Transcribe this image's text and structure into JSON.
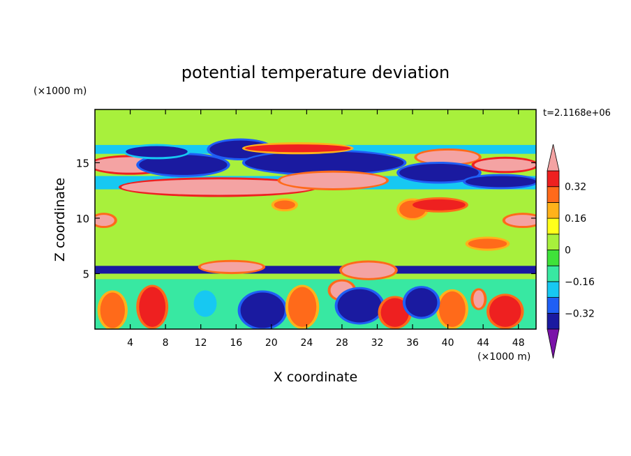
{
  "chart_data": {
    "type": "heatmap",
    "title": "potential temperature deviation",
    "xlabel": "X coordinate",
    "ylabel": "Z coordinate",
    "x_units": "(×1000 m)",
    "y_units": "(×1000 m)",
    "time_label": "t=2.1168e+06",
    "xlim": [
      0,
      50
    ],
    "ylim": [
      0,
      19.8
    ],
    "x_ticks": [
      4,
      8,
      12,
      16,
      20,
      24,
      28,
      32,
      36,
      40,
      44,
      48
    ],
    "y_ticks": [
      5,
      10,
      15
    ],
    "colorbar": {
      "levels": [
        -0.4,
        -0.32,
        -0.24,
        -0.16,
        -0.08,
        0,
        0.08,
        0.16,
        0.24,
        0.32,
        0.4
      ],
      "tick_labels": [
        "0.32",
        "0.16",
        "0",
        "−0.16",
        "−0.32"
      ],
      "tick_values": [
        0.32,
        0.16,
        0,
        -0.16,
        -0.32
      ],
      "colors": [
        "#7a12a8",
        "#1a1aa0",
        "#1f5ff5",
        "#17c8f2",
        "#38e8a2",
        "#3fe23a",
        "#a8f03c",
        "#ffff1a",
        "#ffb21a",
        "#ff6a1a",
        "#ee2020",
        "#f4a3a3"
      ]
    },
    "features": [
      {
        "x": [
          0,
          50
        ],
        "y": [
          0,
          19.8
        ],
        "level": 0.03,
        "desc": "background"
      },
      {
        "x": [
          0,
          50
        ],
        "y": [
          16.8,
          19.8
        ],
        "level": 0.05
      },
      {
        "x": [
          0,
          50
        ],
        "y": [
          11.5,
          13.6
        ],
        "level": 0.01
      },
      {
        "x": [
          0,
          50
        ],
        "y": [
          8.5,
          11.0
        ],
        "level": 0.04
      },
      {
        "x": [
          0,
          50
        ],
        "y": [
          6.0,
          8.2
        ],
        "level": 0.03
      },
      {
        "x": [
          0,
          50
        ],
        "y": [
          5.0,
          5.7
        ],
        "level": -0.33
      },
      {
        "x": [
          0,
          50
        ],
        "y": [
          0,
          4.5
        ],
        "level": -0.1
      },
      {
        "x": [
          0,
          50
        ],
        "y": [
          15.8,
          16.6
        ],
        "level": -0.2
      },
      {
        "x": [
          0,
          50
        ],
        "y": [
          12.6,
          13.8
        ],
        "level": -0.24
      }
    ],
    "blobs": [
      {
        "cx": 4,
        "cy": 14.8,
        "rx": 4.5,
        "ry": 0.7,
        "level": 0.45
      },
      {
        "cx": 14,
        "cy": 12.8,
        "rx": 11,
        "ry": 0.7,
        "level": 0.45
      },
      {
        "cx": 16.5,
        "cy": 16.2,
        "rx": 3.5,
        "ry": 0.8,
        "level": -0.35
      },
      {
        "cx": 10,
        "cy": 14.8,
        "rx": 5,
        "ry": 0.9,
        "level": -0.4
      },
      {
        "cx": 7,
        "cy": 16.0,
        "rx": 3.5,
        "ry": 0.5,
        "level": -0.33
      },
      {
        "cx": 26,
        "cy": 15.0,
        "rx": 9,
        "ry": 1.0,
        "level": -0.4
      },
      {
        "cx": 27,
        "cy": 13.4,
        "rx": 6,
        "ry": 0.7,
        "level": 0.42
      },
      {
        "cx": 23,
        "cy": 16.3,
        "rx": 6,
        "ry": 0.35,
        "level": 0.33
      },
      {
        "cx": 40,
        "cy": 15.5,
        "rx": 3.5,
        "ry": 0.6,
        "level": 0.42
      },
      {
        "cx": 39,
        "cy": 14.1,
        "rx": 4.5,
        "ry": 0.8,
        "level": -0.4
      },
      {
        "cx": 46.5,
        "cy": 14.8,
        "rx": 3.5,
        "ry": 0.55,
        "level": 0.45
      },
      {
        "cx": 46,
        "cy": 13.3,
        "rx": 4,
        "ry": 0.5,
        "level": -0.35
      },
      {
        "cx": 36,
        "cy": 10.8,
        "rx": 1.5,
        "ry": 0.8,
        "level": 0.3
      },
      {
        "cx": 39,
        "cy": 11.2,
        "rx": 3,
        "ry": 0.5,
        "level": 0.35
      },
      {
        "cx": 48.5,
        "cy": 9.8,
        "rx": 2,
        "ry": 0.5,
        "level": 0.4
      },
      {
        "cx": 1,
        "cy": 9.8,
        "rx": 1.2,
        "ry": 0.5,
        "level": 0.4
      },
      {
        "cx": 21.5,
        "cy": 11.2,
        "rx": 1.2,
        "ry": 0.4,
        "level": 0.3
      },
      {
        "cx": 44.5,
        "cy": 7.7,
        "rx": 2.2,
        "ry": 0.45,
        "level": 0.3
      },
      {
        "cx": 15.5,
        "cy": 5.6,
        "rx": 3.5,
        "ry": 0.45,
        "level": 0.42
      },
      {
        "cx": 31,
        "cy": 5.3,
        "rx": 3,
        "ry": 0.7,
        "level": 0.42
      },
      {
        "cx": 28,
        "cy": 3.5,
        "rx": 1.3,
        "ry": 0.8,
        "level": 0.42
      },
      {
        "cx": 43.5,
        "cy": 2.7,
        "rx": 0.6,
        "ry": 0.8,
        "level": 0.42
      },
      {
        "cx": 2,
        "cy": 1.7,
        "rx": 1.4,
        "ry": 1.6,
        "level": 0.3
      },
      {
        "cx": 6.5,
        "cy": 2.0,
        "rx": 1.5,
        "ry": 1.8,
        "level": 0.36
      },
      {
        "cx": 19,
        "cy": 1.7,
        "rx": 2.5,
        "ry": 1.6,
        "level": -0.4
      },
      {
        "cx": 23.5,
        "cy": 2.0,
        "rx": 1.6,
        "ry": 1.8,
        "level": 0.3
      },
      {
        "cx": 30,
        "cy": 2.1,
        "rx": 2.5,
        "ry": 1.5,
        "level": -0.4
      },
      {
        "cx": 34,
        "cy": 1.5,
        "rx": 1.6,
        "ry": 1.3,
        "level": 0.38
      },
      {
        "cx": 40.5,
        "cy": 1.8,
        "rx": 1.5,
        "ry": 1.6,
        "level": 0.3
      },
      {
        "cx": 46.5,
        "cy": 1.6,
        "rx": 1.8,
        "ry": 1.4,
        "level": 0.36
      },
      {
        "cx": 12.5,
        "cy": 2.3,
        "rx": 1.3,
        "ry": 1.2,
        "level": -0.2
      },
      {
        "cx": 37,
        "cy": 2.4,
        "rx": 1.8,
        "ry": 1.3,
        "level": -0.35
      }
    ]
  }
}
